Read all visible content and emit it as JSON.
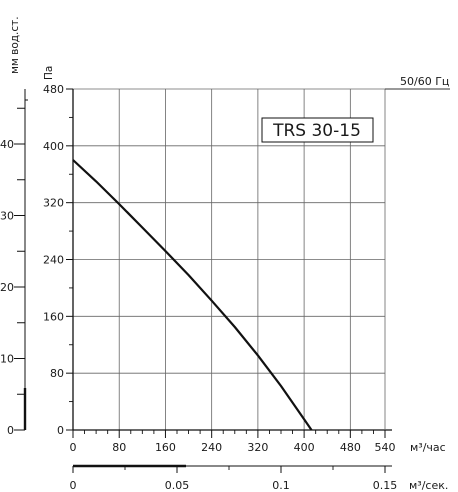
{
  "chart_data": {
    "type": "line",
    "model_label": "TRS 30-15",
    "frequency_label": "50/60 Гц",
    "y_left_units_label": "мм вод.ст.",
    "y_units_label": "Па",
    "x_units_label": "м³/час",
    "x2_units_label": "м³/сек.",
    "y_ticks": [
      0,
      80,
      160,
      240,
      320,
      400,
      480
    ],
    "y_left_ticks": [
      0,
      10,
      20,
      30,
      40
    ],
    "x_ticks": [
      0,
      80,
      160,
      240,
      320,
      400,
      480,
      540
    ],
    "x2_ticks": [
      {
        "label": "0",
        "value": 0
      },
      {
        "label": "0.05",
        "value": 0.05
      },
      {
        "label": "0.1",
        "value": 0.1
      },
      {
        "label": "0.15",
        "value": 0.15
      }
    ],
    "xlim": [
      0,
      540
    ],
    "ylim": [
      0,
      480
    ],
    "grid": true,
    "series": [
      {
        "x": [
          0,
          40,
          80,
          120,
          160,
          200,
          240,
          280,
          320,
          360,
          400,
          430
        ],
        "y": [
          380,
          350,
          318,
          285,
          252,
          218,
          182,
          145,
          105,
          62,
          15,
          -20
        ]
      }
    ]
  }
}
